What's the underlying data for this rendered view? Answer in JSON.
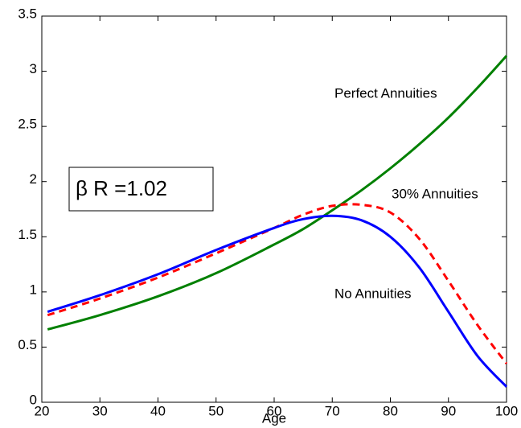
{
  "chart_data": {
    "type": "line",
    "x_label": "Age",
    "annotations": [
      "β R =1.02"
    ],
    "x": [
      21,
      30,
      40,
      50,
      60,
      65,
      70,
      75,
      80,
      85,
      90,
      95,
      100
    ],
    "series": [
      {
        "name": "Perfect Annuities",
        "color": "#008000",
        "style": "solid",
        "values": [
          0.66,
          0.79,
          0.96,
          1.17,
          1.43,
          1.57,
          1.74,
          1.92,
          2.12,
          2.34,
          2.58,
          2.85,
          3.14
        ]
      },
      {
        "name": "30% Annuities",
        "color": "#ff0000",
        "style": "dashed",
        "values": [
          0.79,
          0.94,
          1.13,
          1.35,
          1.58,
          1.7,
          1.78,
          1.79,
          1.72,
          1.48,
          1.1,
          0.7,
          0.35
        ]
      },
      {
        "name": "No Annuities",
        "color": "#0000ff",
        "style": "solid",
        "values": [
          0.82,
          0.97,
          1.16,
          1.38,
          1.58,
          1.66,
          1.69,
          1.65,
          1.5,
          1.22,
          0.82,
          0.42,
          0.14
        ]
      }
    ],
    "xlim": [
      20,
      100
    ],
    "xticks": [
      20,
      30,
      40,
      50,
      60,
      70,
      80,
      90,
      100
    ],
    "ylim": [
      0,
      3.5
    ],
    "yticks": [
      0,
      0.5,
      1,
      1.5,
      2,
      2.5,
      3,
      3.5
    ],
    "grid": false
  }
}
